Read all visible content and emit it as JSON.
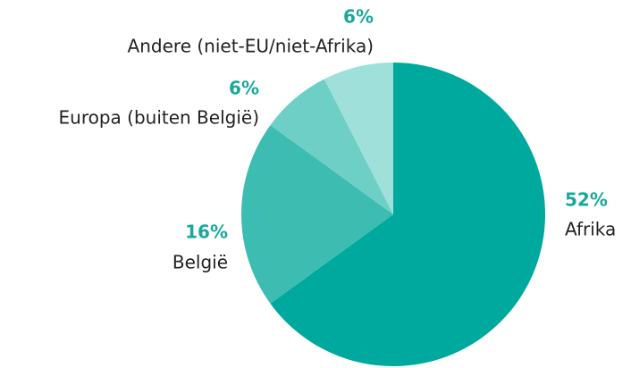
{
  "chart_data": {
    "type": "pie",
    "categories": [
      "Afrika",
      "België",
      "Europa (buiten België)",
      "Andere (niet-EU/niet-Afrika)"
    ],
    "values": [
      52,
      16,
      6,
      6
    ],
    "value_labels": [
      "52%",
      "16%",
      "6%",
      "6%"
    ],
    "colors": [
      "#00a99d",
      "#3dbdb2",
      "#6dcfc6",
      "#9fe0da"
    ]
  }
}
